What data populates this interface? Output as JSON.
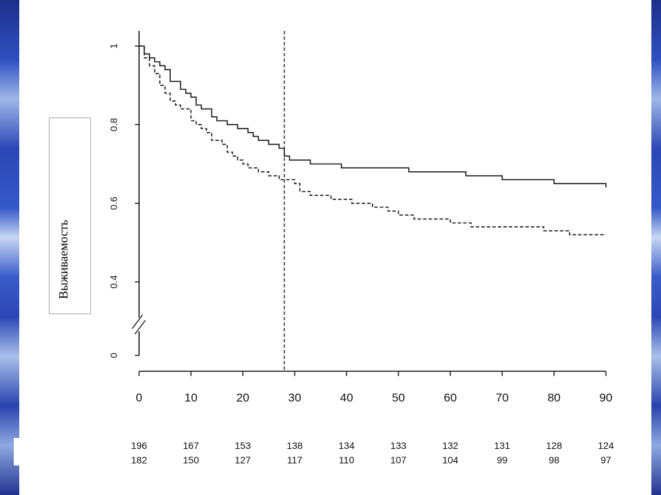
{
  "chart_data": {
    "type": "line",
    "step": true,
    "ylabel": "Выживаемость",
    "xlim": [
      0,
      90
    ],
    "ylim": [
      0,
      1
    ],
    "y_axis_break": true,
    "x_ticks": [
      0,
      10,
      20,
      30,
      40,
      50,
      60,
      70,
      80,
      90
    ],
    "y_ticks": [
      0,
      0.4,
      0.6,
      0.8,
      1
    ],
    "y_tick_labels": [
      "0",
      "0.4",
      "0.6",
      "0.8",
      "1"
    ],
    "vertical_reference_line_x": 28,
    "series": [
      {
        "line_style": "solid",
        "color": "#1a1a1a",
        "x": [
          0,
          1,
          2,
          3,
          4,
          5,
          6,
          8,
          9,
          10,
          11,
          12,
          14,
          15,
          17,
          19,
          21,
          22,
          23,
          25,
          27,
          28,
          29,
          31,
          33,
          35,
          39,
          45,
          52,
          54,
          58,
          63,
          66,
          70,
          73,
          75,
          80,
          89,
          90
        ],
        "y": [
          1,
          0.98,
          0.97,
          0.96,
          0.95,
          0.94,
          0.91,
          0.89,
          0.88,
          0.87,
          0.85,
          0.84,
          0.82,
          0.81,
          0.8,
          0.79,
          0.78,
          0.77,
          0.76,
          0.75,
          0.74,
          0.72,
          0.71,
          0.71,
          0.7,
          0.7,
          0.69,
          0.69,
          0.68,
          0.68,
          0.68,
          0.67,
          0.67,
          0.66,
          0.66,
          0.66,
          0.65,
          0.65,
          0.64
        ]
      },
      {
        "line_style": "dashed",
        "color": "#1a1a1a",
        "x": [
          0,
          1,
          2,
          3,
          4,
          5,
          6,
          7,
          8,
          10,
          11,
          12,
          13,
          14,
          16,
          17,
          18,
          19,
          20,
          21,
          23,
          25,
          27,
          30,
          31,
          33,
          37,
          41,
          45,
          48,
          50,
          53,
          60,
          64,
          70,
          78,
          83,
          90
        ],
        "y": [
          1,
          0.97,
          0.95,
          0.93,
          0.9,
          0.88,
          0.86,
          0.85,
          0.84,
          0.81,
          0.8,
          0.79,
          0.78,
          0.76,
          0.75,
          0.73,
          0.72,
          0.71,
          0.7,
          0.69,
          0.68,
          0.67,
          0.66,
          0.65,
          0.63,
          0.62,
          0.61,
          0.6,
          0.59,
          0.58,
          0.57,
          0.56,
          0.55,
          0.54,
          0.54,
          0.53,
          0.52,
          0.52
        ]
      }
    ],
    "numbers_at_risk": {
      "x": [
        0,
        10,
        20,
        30,
        40,
        50,
        60,
        70,
        80,
        90
      ],
      "rows": [
        [
          "196",
          "167",
          "153",
          "138",
          "134",
          "133",
          "132",
          "131",
          "128",
          "124"
        ],
        [
          "182",
          "150",
          "127",
          "117",
          "110",
          "107",
          "104",
          "99",
          "98",
          "97"
        ]
      ]
    }
  }
}
